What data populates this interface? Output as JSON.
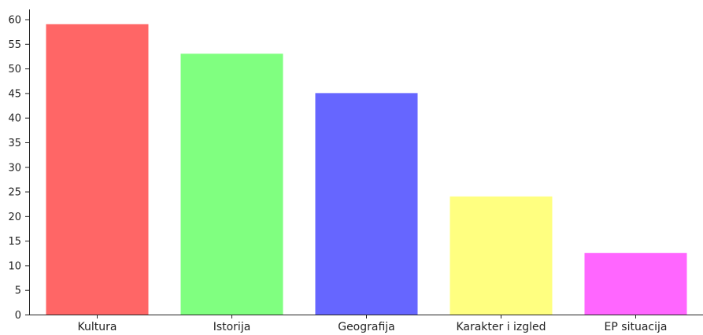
{
  "chart_data": {
    "type": "bar",
    "title": "",
    "xlabel": "",
    "ylabel": "",
    "categories": [
      "Kultura",
      "Istorija",
      "Geografija",
      "Karakter i izgled",
      "EP situacija"
    ],
    "values": [
      59,
      53,
      45,
      24,
      12.5
    ],
    "colors": [
      "#ff6666",
      "#80ff80",
      "#6666ff",
      "#ffff80",
      "#ff66ff"
    ],
    "ylim": [
      0,
      62
    ],
    "yticks": [
      0,
      5,
      10,
      15,
      20,
      25,
      30,
      35,
      40,
      45,
      50,
      55,
      60
    ],
    "grid": false,
    "legend": "none"
  }
}
